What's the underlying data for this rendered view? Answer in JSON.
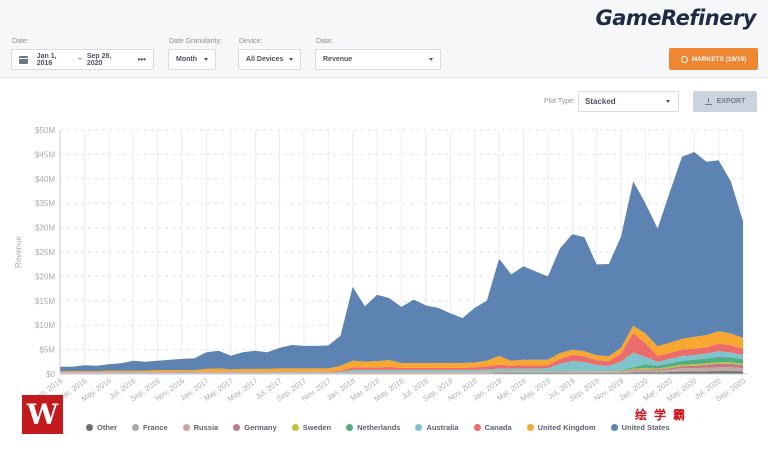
{
  "brand": {
    "logo": "GameRefinery"
  },
  "filters": {
    "date": {
      "label": "Date:",
      "start": "Jan 1, 2016",
      "separator": "–",
      "end": "Sep 28, 2020",
      "more": "•••"
    },
    "granularity": {
      "label": "Date Granularity:",
      "value": "Month"
    },
    "device": {
      "label": "Device:",
      "value": "All Devices"
    },
    "data": {
      "label": "Data:",
      "value": "Revenue"
    },
    "markets_button": "MARKETS (19/19)"
  },
  "toolbar": {
    "plot_type_label": "Plot Type:",
    "plot_type_value": "Stacked",
    "export_label": "EXPORT"
  },
  "watermark": {
    "logo_letter": "W",
    "text": "绘学霸"
  },
  "colors": {
    "accent": "#ee8632",
    "export_bg": "#c9d4df"
  },
  "chart_data": {
    "type": "area",
    "stacked": true,
    "title": "",
    "xlabel": "",
    "ylabel": "Revenue",
    "ylim": [
      0,
      50
    ],
    "y_unit": "$M",
    "y_ticks": [
      "$0",
      "$5M",
      "$10M",
      "$15M",
      "$20M",
      "$25M",
      "$30M",
      "$35M",
      "$40M",
      "$45M",
      "$50M"
    ],
    "y_tick_values": [
      0,
      5,
      10,
      15,
      20,
      25,
      30,
      35,
      40,
      45,
      50
    ],
    "grid": true,
    "legend_position": "bottom",
    "x": [
      "Jan 2016",
      "Feb 2016",
      "Mar 2016",
      "Apr 2016",
      "May 2016",
      "Jun 2016",
      "Jul 2016",
      "Aug 2016",
      "Sep 2016",
      "Oct 2016",
      "Nov 2016",
      "Dec 2016",
      "Jan 2017",
      "Feb 2017",
      "Mar 2017",
      "Apr 2017",
      "May 2017",
      "Jun 2017",
      "Jul 2017",
      "Aug 2017",
      "Sep 2017",
      "Oct 2017",
      "Nov 2017",
      "Dec 2017",
      "Jan 2018",
      "Feb 2018",
      "Mar 2018",
      "Apr 2018",
      "May 2018",
      "Jun 2018",
      "Jul 2018",
      "Aug 2018",
      "Sep 2018",
      "Oct 2018",
      "Nov 2018",
      "Dec 2018",
      "Jan 2019",
      "Feb 2019",
      "Mar 2019",
      "Apr 2019",
      "May 2019",
      "Jun 2019",
      "Jul 2019",
      "Aug 2019",
      "Sep 2019",
      "Oct 2019",
      "Nov 2019",
      "Dec 2019",
      "Jan 2020",
      "Feb 2020",
      "Mar 2020",
      "Apr 2020",
      "May 2020",
      "Jun 2020",
      "Jul 2020",
      "Aug 2020",
      "Sep 2020"
    ],
    "x_tick_labels": [
      "Jan, 2016",
      "Mar, 2016",
      "May, 2016",
      "Jul, 2016",
      "Sep, 2016",
      "Nov, 2016",
      "Jan, 2017",
      "Mar, 2017",
      "May, 2017",
      "Jul, 2017",
      "Sep, 2017",
      "Nov, 2017",
      "Jan, 2018",
      "Mar, 2018",
      "May, 2018",
      "Jul, 2018",
      "Sep, 2018",
      "Nov, 2018",
      "Jan, 2019",
      "Mar, 2019",
      "May, 2019",
      "Jul, 2019",
      "Sep, 2019",
      "Nov, 2019",
      "Jan, 2020",
      "Mar, 2020",
      "May, 2020",
      "Jul, 2020",
      "Sep, 2020"
    ],
    "series": [
      {
        "name": "Other",
        "color": "#6f6f6f",
        "values": [
          0.1,
          0.1,
          0.1,
          0.1,
          0.1,
          0.1,
          0.1,
          0.1,
          0.1,
          0.1,
          0.1,
          0.1,
          0.1,
          0.1,
          0.1,
          0.1,
          0.1,
          0.1,
          0.1,
          0.1,
          0.1,
          0.1,
          0.1,
          0.1,
          0.15,
          0.15,
          0.15,
          0.15,
          0.15,
          0.15,
          0.15,
          0.15,
          0.15,
          0.15,
          0.15,
          0.15,
          0.2,
          0.2,
          0.2,
          0.2,
          0.2,
          0.2,
          0.2,
          0.2,
          0.2,
          0.2,
          0.2,
          0.3,
          0.3,
          0.3,
          0.4,
          0.5,
          0.5,
          0.5,
          0.6,
          0.6,
          0.5
        ]
      },
      {
        "name": "France",
        "color": "#a7aaa9",
        "values": [
          0.05,
          0.05,
          0.05,
          0.05,
          0.05,
          0.05,
          0.05,
          0.05,
          0.05,
          0.05,
          0.05,
          0.05,
          0.05,
          0.05,
          0.05,
          0.05,
          0.05,
          0.05,
          0.05,
          0.05,
          0.05,
          0.05,
          0.05,
          0.05,
          0.1,
          0.1,
          0.1,
          0.1,
          0.1,
          0.1,
          0.1,
          0.1,
          0.1,
          0.1,
          0.1,
          0.1,
          0.1,
          0.1,
          0.1,
          0.1,
          0.1,
          0.1,
          0.15,
          0.15,
          0.15,
          0.15,
          0.15,
          0.2,
          0.2,
          0.2,
          0.2,
          0.3,
          0.3,
          0.3,
          0.3,
          0.3,
          0.3
        ]
      },
      {
        "name": "Russia",
        "color": "#c9a5a0",
        "values": [
          0.05,
          0.05,
          0.05,
          0.05,
          0.05,
          0.05,
          0.05,
          0.05,
          0.05,
          0.05,
          0.05,
          0.05,
          0.05,
          0.05,
          0.05,
          0.05,
          0.05,
          0.05,
          0.05,
          0.05,
          0.05,
          0.05,
          0.05,
          0.05,
          0.1,
          0.1,
          0.1,
          0.1,
          0.1,
          0.1,
          0.1,
          0.1,
          0.1,
          0.1,
          0.1,
          0.1,
          0.1,
          0.1,
          0.1,
          0.1,
          0.1,
          0.1,
          0.1,
          0.1,
          0.1,
          0.1,
          0.1,
          0.2,
          0.2,
          0.2,
          0.3,
          0.4,
          0.4,
          0.5,
          0.5,
          0.5,
          0.4
        ]
      },
      {
        "name": "Germany",
        "color": "#c07a8a",
        "values": [
          0.05,
          0.05,
          0.05,
          0.05,
          0.05,
          0.05,
          0.05,
          0.05,
          0.05,
          0.05,
          0.05,
          0.05,
          0.05,
          0.05,
          0.05,
          0.05,
          0.05,
          0.05,
          0.05,
          0.05,
          0.05,
          0.05,
          0.05,
          0.05,
          0.1,
          0.1,
          0.1,
          0.1,
          0.1,
          0.1,
          0.1,
          0.1,
          0.1,
          0.1,
          0.1,
          0.1,
          0.1,
          0.1,
          0.1,
          0.1,
          0.1,
          0.1,
          0.1,
          0.1,
          0.1,
          0.1,
          0.1,
          0.2,
          0.2,
          0.2,
          0.3,
          0.4,
          0.5,
          0.6,
          0.7,
          0.7,
          0.6
        ]
      },
      {
        "name": "Sweden",
        "color": "#c7c03f",
        "values": [
          0,
          0,
          0,
          0,
          0,
          0,
          0,
          0,
          0,
          0,
          0,
          0,
          0,
          0,
          0,
          0,
          0,
          0,
          0,
          0,
          0,
          0,
          0,
          0,
          0.05,
          0.05,
          0.05,
          0.05,
          0.05,
          0.05,
          0.05,
          0.05,
          0.05,
          0.05,
          0.05,
          0.05,
          0.05,
          0.05,
          0.05,
          0.05,
          0.05,
          0.05,
          0.05,
          0.05,
          0.05,
          0.05,
          0.1,
          0.2,
          0.3,
          0.2,
          0.3,
          0.3,
          0.3,
          0.3,
          0.3,
          0.3,
          0.3
        ]
      },
      {
        "name": "Netherlands",
        "color": "#4fae84",
        "values": [
          0,
          0,
          0,
          0,
          0,
          0,
          0,
          0,
          0,
          0,
          0,
          0,
          0,
          0,
          0,
          0,
          0,
          0,
          0,
          0,
          0,
          0,
          0,
          0,
          0.05,
          0.05,
          0.05,
          0.05,
          0.05,
          0.05,
          0.05,
          0.05,
          0.05,
          0.05,
          0.05,
          0.05,
          0.05,
          0.05,
          0.05,
          0.05,
          0.05,
          0.05,
          0.05,
          0.05,
          0.05,
          0.05,
          0.1,
          0.3,
          0.8,
          0.6,
          0.7,
          0.8,
          0.9,
          1.0,
          1.1,
          1.0,
          0.9
        ]
      },
      {
        "name": "Australia",
        "color": "#7fc3cc",
        "values": [
          0.1,
          0.1,
          0.1,
          0.1,
          0.1,
          0.1,
          0.1,
          0.1,
          0.1,
          0.1,
          0.1,
          0.1,
          0.1,
          0.1,
          0.1,
          0.1,
          0.1,
          0.1,
          0.1,
          0.1,
          0.1,
          0.1,
          0.1,
          0.2,
          0.3,
          0.3,
          0.3,
          0.3,
          0.3,
          0.3,
          0.3,
          0.3,
          0.3,
          0.3,
          0.3,
          0.4,
          0.5,
          0.5,
          0.5,
          0.5,
          0.6,
          1.5,
          2.0,
          1.8,
          1.2,
          1.0,
          1.8,
          3.0,
          1.5,
          0.8,
          0.9,
          1.0,
          1.0,
          1.0,
          1.2,
          1.0,
          0.9
        ]
      },
      {
        "name": "Canada",
        "color": "#ec6b6b",
        "values": [
          0.05,
          0.05,
          0.05,
          0.05,
          0.05,
          0.05,
          0.05,
          0.05,
          0.05,
          0.05,
          0.05,
          0.05,
          0.1,
          0.1,
          0.1,
          0.1,
          0.1,
          0.1,
          0.1,
          0.1,
          0.1,
          0.1,
          0.1,
          0.2,
          0.5,
          0.5,
          0.5,
          0.6,
          0.4,
          0.4,
          0.4,
          0.4,
          0.4,
          0.4,
          0.5,
          0.6,
          0.8,
          0.6,
          0.7,
          0.6,
          0.6,
          1.0,
          1.3,
          1.2,
          1.0,
          1.0,
          1.6,
          4.0,
          2.8,
          1.2,
          1.2,
          1.3,
          1.3,
          1.3,
          1.5,
          1.5,
          1.3
        ]
      },
      {
        "name": "United Kingdom",
        "color": "#f8a830",
        "values": [
          0.2,
          0.2,
          0.2,
          0.2,
          0.3,
          0.3,
          0.3,
          0.3,
          0.4,
          0.4,
          0.4,
          0.4,
          0.6,
          0.7,
          0.5,
          0.6,
          0.6,
          0.6,
          0.7,
          0.7,
          0.7,
          0.7,
          0.7,
          1.0,
          1.4,
          1.2,
          1.3,
          1.4,
          1.0,
          1.0,
          1.0,
          1.0,
          1.0,
          1.0,
          1.0,
          1.2,
          1.8,
          1.0,
          1.1,
          1.2,
          1.1,
          1.2,
          1.0,
          1.0,
          1.0,
          1.0,
          1.2,
          1.5,
          2.0,
          2.0,
          2.1,
          2.2,
          2.4,
          2.5,
          2.6,
          2.4,
          2.2
        ]
      },
      {
        "name": "United States",
        "color": "#5d83b3",
        "values": [
          0.9,
          0.9,
          1.2,
          1.1,
          1.3,
          1.5,
          2.0,
          1.8,
          1.9,
          2.1,
          2.3,
          2.4,
          3.4,
          3.6,
          2.8,
          3.4,
          3.7,
          3.4,
          4.2,
          4.8,
          4.6,
          4.6,
          4.7,
          6.2,
          15.1,
          11.3,
          13.6,
          12.7,
          11.5,
          13.0,
          11.8,
          11.3,
          10.2,
          9.2,
          11.2,
          12.3,
          19.9,
          17.7,
          19.2,
          18.1,
          17.1,
          21.5,
          23.7,
          23.4,
          18.6,
          18.9,
          22.8,
          29.6,
          26.7,
          24.1,
          30.9,
          37.3,
          37.9,
          35.5,
          35.0,
          31.2,
          23.9
        ]
      }
    ]
  }
}
